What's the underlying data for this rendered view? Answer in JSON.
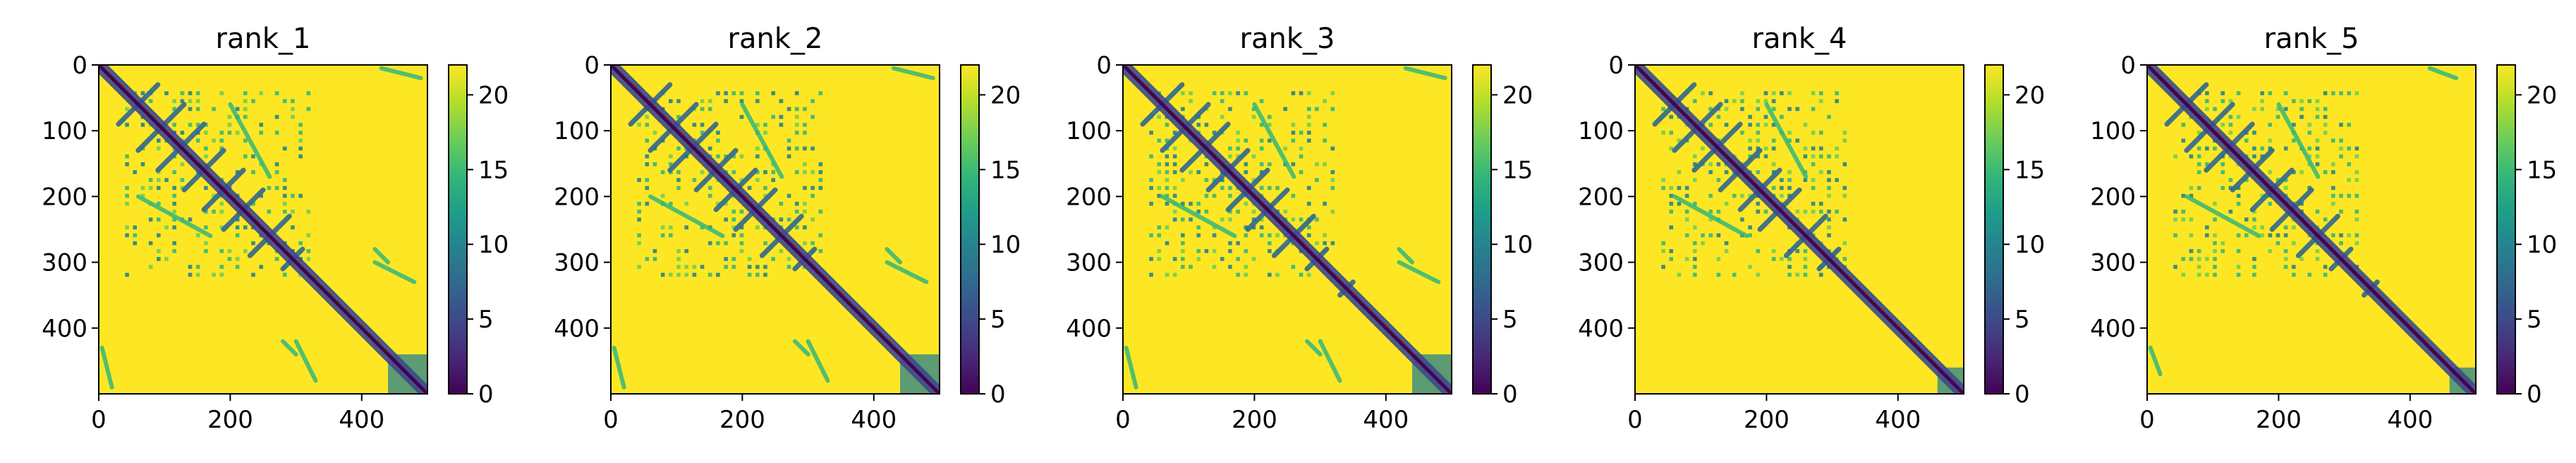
{
  "chart_data": [
    {
      "type": "heatmap",
      "title": "rank_1",
      "matrix_size": 500,
      "xlim": [
        0,
        500
      ],
      "ylim": [
        500,
        0
      ],
      "xticks": [
        0,
        200,
        400
      ],
      "yticks": [
        0,
        100,
        200,
        300,
        400
      ],
      "colorbar": {
        "range": [
          0,
          22
        ],
        "ticks": [
          0,
          5,
          10,
          15,
          20
        ],
        "colormap": "viridis"
      },
      "features": {
        "diagonal": [
          [
            0,
            500
          ]
        ],
        "contact_cluster": [
          40,
          320
        ],
        "cross_band_pairs": [
          [
            30,
            90
          ],
          [
            60,
            130
          ],
          [
            90,
            160
          ],
          [
            130,
            190
          ],
          [
            160,
            220
          ],
          [
            190,
            250
          ],
          [
            230,
            290
          ],
          [
            280,
            310
          ]
        ],
        "far_contacts": [
          [
            [
              5,
              20
            ],
            [
              430,
              490
            ]
          ],
          [
            [
              60,
              170
            ],
            [
              200,
              260
            ]
          ],
          [
            [
              300,
              330
            ],
            [
              420,
              480
            ]
          ],
          [
            [
              280,
              300
            ],
            [
              420,
              440
            ]
          ]
        ],
        "tail_block": [
          440,
          500
        ]
      }
    },
    {
      "type": "heatmap",
      "title": "rank_2",
      "matrix_size": 500,
      "xlim": [
        0,
        500
      ],
      "ylim": [
        500,
        0
      ],
      "xticks": [
        0,
        200,
        400
      ],
      "yticks": [
        0,
        100,
        200,
        300,
        400
      ],
      "colorbar": {
        "range": [
          0,
          22
        ],
        "ticks": [
          0,
          5,
          10,
          15,
          20
        ],
        "colormap": "viridis"
      },
      "features": {
        "diagonal": [
          [
            0,
            500
          ]
        ],
        "contact_cluster": [
          40,
          320
        ],
        "cross_band_pairs": [
          [
            30,
            90
          ],
          [
            60,
            130
          ],
          [
            90,
            160
          ],
          [
            130,
            190
          ],
          [
            160,
            220
          ],
          [
            190,
            250
          ],
          [
            230,
            290
          ],
          [
            280,
            310
          ]
        ],
        "far_contacts": [
          [
            [
              5,
              20
            ],
            [
              430,
              490
            ]
          ],
          [
            [
              60,
              170
            ],
            [
              200,
              260
            ]
          ],
          [
            [
              300,
              330
            ],
            [
              420,
              480
            ]
          ],
          [
            [
              280,
              300
            ],
            [
              420,
              440
            ]
          ]
        ],
        "tail_block": [
          440,
          500
        ]
      }
    },
    {
      "type": "heatmap",
      "title": "rank_3",
      "matrix_size": 500,
      "xlim": [
        0,
        500
      ],
      "ylim": [
        500,
        0
      ],
      "xticks": [
        0,
        200,
        400
      ],
      "yticks": [
        0,
        100,
        200,
        300,
        400
      ],
      "colorbar": {
        "range": [
          0,
          22
        ],
        "ticks": [
          0,
          5,
          10,
          15,
          20
        ],
        "colormap": "viridis"
      },
      "features": {
        "diagonal": [
          [
            0,
            500
          ]
        ],
        "contact_cluster": [
          40,
          320
        ],
        "cross_band_pairs": [
          [
            30,
            90
          ],
          [
            60,
            130
          ],
          [
            90,
            160
          ],
          [
            130,
            190
          ],
          [
            160,
            220
          ],
          [
            190,
            250
          ],
          [
            230,
            290
          ],
          [
            280,
            310
          ],
          [
            330,
            350
          ]
        ],
        "far_contacts": [
          [
            [
              5,
              20
            ],
            [
              430,
              490
            ]
          ],
          [
            [
              60,
              170
            ],
            [
              200,
              260
            ]
          ],
          [
            [
              300,
              330
            ],
            [
              420,
              480
            ]
          ],
          [
            [
              280,
              300
            ],
            [
              420,
              440
            ]
          ]
        ],
        "tail_block": [
          440,
          500
        ]
      }
    },
    {
      "type": "heatmap",
      "title": "rank_4",
      "matrix_size": 500,
      "xlim": [
        0,
        500
      ],
      "ylim": [
        500,
        0
      ],
      "xticks": [
        0,
        200,
        400
      ],
      "yticks": [
        0,
        100,
        200,
        300,
        400
      ],
      "colorbar": {
        "range": [
          0,
          22
        ],
        "ticks": [
          0,
          5,
          10,
          15,
          20
        ],
        "colormap": "viridis"
      },
      "features": {
        "diagonal": [
          [
            0,
            500
          ]
        ],
        "contact_cluster": [
          40,
          320
        ],
        "cross_band_pairs": [
          [
            30,
            90
          ],
          [
            60,
            130
          ],
          [
            90,
            160
          ],
          [
            130,
            190
          ],
          [
            160,
            220
          ],
          [
            190,
            250
          ],
          [
            230,
            290
          ],
          [
            280,
            310
          ]
        ],
        "far_contacts": [
          [
            [
              60,
              170
            ],
            [
              200,
              260
            ]
          ]
        ],
        "tail_block": [
          460,
          500
        ]
      }
    },
    {
      "type": "heatmap",
      "title": "rank_5",
      "matrix_size": 500,
      "xlim": [
        0,
        500
      ],
      "ylim": [
        500,
        0
      ],
      "xticks": [
        0,
        200,
        400
      ],
      "yticks": [
        0,
        100,
        200,
        300,
        400
      ],
      "colorbar": {
        "range": [
          0,
          22
        ],
        "ticks": [
          0,
          5,
          10,
          15,
          20
        ],
        "colormap": "viridis"
      },
      "features": {
        "diagonal": [
          [
            0,
            500
          ]
        ],
        "contact_cluster": [
          40,
          320
        ],
        "cross_band_pairs": [
          [
            30,
            90
          ],
          [
            60,
            130
          ],
          [
            90,
            160
          ],
          [
            130,
            190
          ],
          [
            160,
            220
          ],
          [
            190,
            250
          ],
          [
            230,
            290
          ],
          [
            280,
            310
          ],
          [
            330,
            350
          ]
        ],
        "far_contacts": [
          [
            [
              5,
              20
            ],
            [
              430,
              470
            ]
          ],
          [
            [
              60,
              170
            ],
            [
              200,
              260
            ]
          ]
        ],
        "tail_block": [
          460,
          500
        ]
      }
    }
  ]
}
